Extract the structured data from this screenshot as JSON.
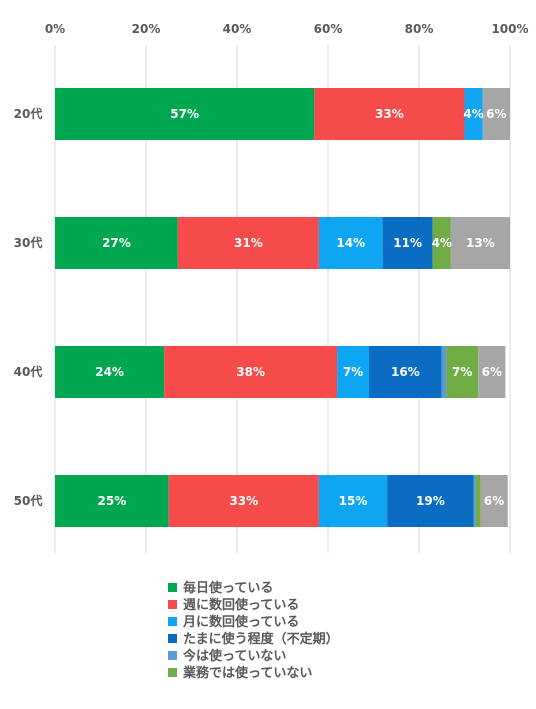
{
  "chart_data": {
    "type": "bar",
    "orientation": "horizontal",
    "stacked": "percent",
    "x_ticks": [
      "0%",
      "20%",
      "40%",
      "60%",
      "80%",
      "100%"
    ],
    "xlim": [
      0,
      100
    ],
    "categories": [
      "20代",
      "30代",
      "40代",
      "50代"
    ],
    "grid": true,
    "legend_position": "bottom",
    "series": [
      {
        "name": "毎日使っている",
        "color": "#00a650",
        "values": [
          57,
          27,
          24,
          25
        ],
        "labels": [
          "57%",
          "27%",
          "24%",
          "25%"
        ]
      },
      {
        "name": "週に数回使っている",
        "color": "#f54b4b",
        "values": [
          33,
          31,
          38,
          33
        ],
        "labels": [
          "33%",
          "31%",
          "38%",
          "33%"
        ]
      },
      {
        "name": "月に数回使っている",
        "color": "#0ea5f2",
        "values": [
          4,
          14,
          7,
          15
        ],
        "labels": [
          "4%",
          "14%",
          "7%",
          "15%"
        ]
      },
      {
        "name": "たまに使う程度（不定期）",
        "color": "#0a6cc2",
        "values": [
          0,
          11,
          16,
          19
        ],
        "labels": [
          "",
          "11%",
          "16%",
          "19%"
        ]
      },
      {
        "name": "今は使っていない",
        "color": "#5b9bd5",
        "values": [
          0,
          0,
          1,
          0.5
        ],
        "labels": [
          "",
          "",
          "",
          ""
        ]
      },
      {
        "name": "業務では使っていない",
        "color": "#70ad47",
        "values": [
          0,
          4,
          7,
          1
        ],
        "labels": [
          "",
          "4%",
          "7%",
          ""
        ]
      },
      {
        "name": "",
        "color": "#a6a6a6",
        "values": [
          6,
          13,
          6,
          6
        ],
        "labels": [
          "6%",
          "13%",
          "6%",
          "6%"
        ]
      }
    ]
  }
}
